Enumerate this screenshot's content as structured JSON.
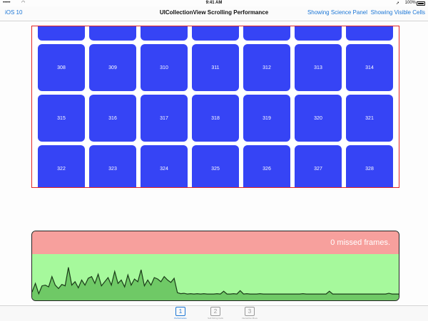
{
  "status_bar": {
    "signal": "•••••",
    "time": "9:41 AM",
    "battery_text": "100%"
  },
  "nav": {
    "back_label": "iOS 10",
    "title": "UICollectionView Scrolling Performance",
    "science_label": "Showing Science Panel",
    "visible_cells_label": "Showing Visible Cells"
  },
  "collection": {
    "top_row_partial": [
      "",
      "",
      "",
      "",
      "",
      "",
      ""
    ],
    "rows": [
      [
        "308",
        "309",
        "310",
        "311",
        "312",
        "313",
        "314"
      ],
      [
        "315",
        "316",
        "317",
        "318",
        "319",
        "320",
        "321"
      ],
      [
        "322",
        "323",
        "324",
        "325",
        "326",
        "327",
        "328"
      ]
    ],
    "cell_color": "#3644f5",
    "border_color": "#e32424"
  },
  "perf_panel": {
    "status_text": "0 missed frames.",
    "missed_frames": 0,
    "bad_color": "#f7a09d",
    "good_color": "#a6f99c",
    "graph_samples": [
      0.1,
      0.35,
      0.05,
      0.28,
      0.3,
      0.25,
      0.55,
      0.3,
      0.2,
      0.32,
      0.28,
      0.82,
      0.3,
      0.4,
      0.22,
      0.45,
      0.3,
      0.5,
      0.55,
      0.35,
      0.62,
      0.28,
      0.4,
      0.52,
      0.3,
      0.7,
      0.35,
      0.45,
      0.25,
      0.6,
      0.3,
      0.48,
      0.4,
      0.75,
      0.28,
      0.45,
      0.3,
      0.52,
      0.48,
      0.4,
      0.55,
      0.45,
      0.38,
      0.5,
      0.08,
      0.05,
      0.06,
      0.04,
      0.05,
      0.04,
      0.05,
      0.04,
      0.05,
      0.04,
      0.04,
      0.04,
      0.05,
      0.04,
      0.12,
      0.04,
      0.04,
      0.05,
      0.04,
      0.14,
      0.04,
      0.05,
      0.04,
      0.04,
      0.04,
      0.05,
      0.04,
      0.04,
      0.04,
      0.04,
      0.04,
      0.04,
      0.04,
      0.04,
      0.04,
      0.04,
      0.04,
      0.04,
      0.05,
      0.04,
      0.04,
      0.04,
      0.04,
      0.04,
      0.04,
      0.04,
      0.12,
      0.04,
      0.04,
      0.04,
      0.04,
      0.04,
      0.04,
      0.04,
      0.04,
      0.04,
      0.04,
      0.04,
      0.04,
      0.04,
      0.04,
      0.04,
      0.04,
      0.04,
      0.06,
      0.04,
      0.04,
      0.04
    ]
  },
  "tabs": [
    {
      "number": "1",
      "label": "Performance",
      "active": true
    },
    {
      "number": "2",
      "label": "Self-Sizing Cells",
      "active": false
    },
    {
      "number": "3",
      "label": "Interactive Move",
      "active": false
    }
  ]
}
